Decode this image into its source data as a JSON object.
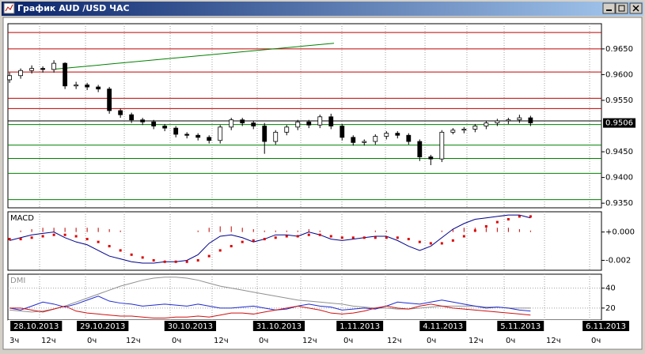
{
  "window_title": "График AUD /USD ЧАС",
  "chart_data": [
    {
      "type": "candlestick",
      "xlim": [
        -0.15,
        53.4
      ],
      "ylim": [
        0.9341,
        0.9699
      ],
      "yticks": [
        {
          "value": 0.965,
          "label": "0.9650"
        },
        {
          "value": 0.96,
          "label": "0.9600"
        },
        {
          "value": 0.955,
          "label": "0.9550"
        },
        {
          "value": 0.945,
          "label": "0.9450"
        },
        {
          "value": 0.94,
          "label": "0.9400"
        },
        {
          "value": 0.935,
          "label": "0.9350"
        }
      ],
      "current_price": {
        "value": 0.9506,
        "label": "0.9506"
      },
      "xticks": [
        {
          "value": 2.4,
          "label": "28.10.2013"
        },
        {
          "value": 8.4,
          "label": "29.10.2013"
        },
        {
          "value": 16.3,
          "label": "30.10.2013"
        },
        {
          "value": 24.3,
          "label": "31.10.2013"
        },
        {
          "value": 31.6,
          "label": "1.11.2013"
        },
        {
          "value": 39.1,
          "label": "4.11.2013"
        },
        {
          "value": 46.1,
          "label": "5.11.2013"
        },
        {
          "value": 53.8,
          "label": "6.11.2013"
        }
      ],
      "xticks_minor": [
        {
          "value": -0.15,
          "label": "3ч"
        },
        {
          "value": 2.71,
          "label": "12ч"
        },
        {
          "value": 6.85,
          "label": "0ч"
        },
        {
          "value": 10.35,
          "label": "12ч"
        },
        {
          "value": 14.49,
          "label": "0ч"
        },
        {
          "value": 18.27,
          "label": "12ч"
        },
        {
          "value": 22.34,
          "label": "0ч"
        },
        {
          "value": 26.27,
          "label": "12ч"
        },
        {
          "value": 29.98,
          "label": "0ч"
        },
        {
          "value": 33.91,
          "label": "12ч"
        },
        {
          "value": 37.48,
          "label": "0ч"
        },
        {
          "value": 41.26,
          "label": "12ч"
        },
        {
          "value": 44.62,
          "label": "0ч"
        },
        {
          "value": 48.26,
          "label": "12ч"
        },
        {
          "value": 52.33,
          "label": "0ч"
        }
      ],
      "levels": [
        {
          "value": 0.9682,
          "color": "#c00000"
        },
        {
          "value": 0.965,
          "color": "#c00000"
        },
        {
          "value": 0.9605,
          "color": "#c00000"
        },
        {
          "value": 0.9554,
          "color": "#c00000"
        },
        {
          "value": 0.9534,
          "color": "#c00000"
        },
        {
          "value": 0.951,
          "color": "#000000"
        },
        {
          "value": 0.9503,
          "color": "#008000"
        },
        {
          "value": 0.9463,
          "color": "#008000"
        },
        {
          "value": 0.9437,
          "color": "#008000"
        },
        {
          "value": 0.9408,
          "color": "#008000"
        },
        {
          "value": 0.9357,
          "color": "#008000"
        }
      ],
      "trendline": {
        "x": [
          3.78,
          29.27
        ],
        "values": [
          0.961,
          0.9661
        ],
        "color": "#008000"
      },
      "open": [
        0.959,
        0.9598,
        0.9608,
        0.9612,
        0.961,
        0.9622,
        0.9578,
        0.958,
        0.9576,
        0.9572,
        0.953,
        0.9522,
        0.9512,
        0.9508,
        0.95,
        0.9496,
        0.9484,
        0.9482,
        0.9478,
        0.9472,
        0.9498,
        0.9512,
        0.9506,
        0.95,
        0.947,
        0.9488,
        0.9498,
        0.9508,
        0.9502,
        0.9518,
        0.95,
        0.9478,
        0.9468,
        0.947,
        0.948,
        0.9486,
        0.9482,
        0.947,
        0.944,
        0.9436,
        0.9488,
        0.9492,
        0.9494,
        0.95,
        0.9506,
        0.951,
        0.9512,
        0.9516
      ],
      "high": [
        0.9604,
        0.9612,
        0.9618,
        0.9616,
        0.9628,
        0.9624,
        0.9586,
        0.9584,
        0.958,
        0.9576,
        0.9534,
        0.9526,
        0.9516,
        0.9512,
        0.9504,
        0.95,
        0.9488,
        0.9486,
        0.9482,
        0.9502,
        0.9516,
        0.9516,
        0.951,
        0.9506,
        0.9492,
        0.9502,
        0.9512,
        0.9512,
        0.9522,
        0.9524,
        0.9504,
        0.9482,
        0.9474,
        0.9484,
        0.949,
        0.949,
        0.9486,
        0.9474,
        0.9444,
        0.9492,
        0.9496,
        0.9498,
        0.9504,
        0.951,
        0.9514,
        0.9516,
        0.9522,
        0.952
      ],
      "low": [
        0.9584,
        0.9592,
        0.9602,
        0.9604,
        0.9604,
        0.9572,
        0.9572,
        0.957,
        0.9566,
        0.9524,
        0.9516,
        0.9506,
        0.9502,
        0.9494,
        0.949,
        0.9478,
        0.9476,
        0.9472,
        0.9466,
        0.9466,
        0.9492,
        0.95,
        0.9494,
        0.9446,
        0.9464,
        0.9482,
        0.9492,
        0.9496,
        0.9496,
        0.9494,
        0.9472,
        0.9462,
        0.9462,
        0.9464,
        0.9474,
        0.9476,
        0.9464,
        0.9432,
        0.9424,
        0.943,
        0.9484,
        0.9486,
        0.9488,
        0.9494,
        0.95,
        0.9504,
        0.9506,
        0.95
      ],
      "close": [
        0.9598,
        0.9608,
        0.9612,
        0.961,
        0.9622,
        0.9578,
        0.958,
        0.9576,
        0.9572,
        0.953,
        0.9522,
        0.9512,
        0.9508,
        0.95,
        0.9496,
        0.9484,
        0.9482,
        0.9478,
        0.9472,
        0.9498,
        0.9512,
        0.9506,
        0.95,
        0.947,
        0.9488,
        0.9498,
        0.9508,
        0.9502,
        0.9518,
        0.95,
        0.9478,
        0.9468,
        0.947,
        0.948,
        0.9486,
        0.9482,
        0.947,
        0.944,
        0.9436,
        0.9488,
        0.9492,
        0.9494,
        0.95,
        0.9506,
        0.951,
        0.9512,
        0.9516,
        0.9506
      ]
    },
    {
      "type": "macd",
      "title": "MACD",
      "ylim": [
        -0.0027,
        0.00143
      ],
      "yticks": [
        {
          "value": 0,
          "label": "+0.000"
        },
        {
          "value": -0.002,
          "label": "-0.002"
        }
      ],
      "histogram": {
        "color": "#c00000",
        "values": [
          0,
          0.0001,
          0.0002,
          0.0003,
          0.0003,
          0.0003,
          0.0003,
          0.0003,
          0.0003,
          0.0002,
          0.0001,
          0,
          0,
          0,
          0,
          0,
          0,
          0.0001,
          0.0003,
          0.0004,
          0.0004,
          0.0003,
          0.0002,
          0.0001,
          0.0001,
          0.0001,
          0.0001,
          0.0002,
          0.0001,
          0,
          0,
          0,
          0,
          0.0001,
          0.0001,
          0,
          0,
          0,
          0,
          0.0001,
          0.0002,
          0.0003,
          0.0003,
          0.0003,
          0.0003,
          0.0003,
          0.0002,
          0.0001
        ]
      },
      "series": [
        {
          "style": "line",
          "color": "#00008b",
          "values": [
            -0.0006,
            -0.0004,
            -0.0002,
            -0.0001,
            0.0,
            -0.0004,
            -0.0007,
            -0.0009,
            -0.0013,
            -0.0017,
            -0.0019,
            -0.0021,
            -0.0022,
            -0.0022,
            -0.0021,
            -0.0021,
            -0.002,
            -0.0016,
            -0.0008,
            -0.0003,
            -0.0002,
            -0.0004,
            -0.0007,
            -0.0005,
            -0.0002,
            -0.0002,
            -0.0003,
            0.0,
            -0.0002,
            -0.0005,
            -0.0006,
            -0.0005,
            -0.0004,
            -0.0003,
            -0.0003,
            -0.0006,
            -0.001,
            -0.0013,
            -0.001,
            -0.0004,
            0.0002,
            0.0006,
            0.0009,
            0.001,
            0.0011,
            0.0012,
            0.0012,
            0.001
          ]
        },
        {
          "style": "dots",
          "color": "#dd0000",
          "values": [
            -0.0005,
            -0.0005,
            -0.0004,
            -0.0003,
            -0.0002,
            -0.0002,
            -0.0003,
            -0.0005,
            -0.0007,
            -0.001,
            -0.0013,
            -0.0016,
            -0.0018,
            -0.002,
            -0.0021,
            -0.0021,
            -0.0021,
            -0.002,
            -0.0017,
            -0.0013,
            -0.001,
            -0.0007,
            -0.0006,
            -0.0005,
            -0.0004,
            -0.0003,
            -0.0003,
            -0.0002,
            -0.0002,
            -0.0003,
            -0.0004,
            -0.0004,
            -0.0004,
            -0.0004,
            -0.0004,
            -0.0004,
            -0.0005,
            -0.0007,
            -0.0008,
            -0.0008,
            -0.0006,
            -0.0003,
            0.0001,
            0.0004,
            0.0007,
            0.0009,
            0.0011,
            0.0011
          ]
        }
      ]
    },
    {
      "type": "dmi",
      "title": "DMI",
      "ylim": [
        8,
        54
      ],
      "yticks": [
        40,
        20
      ],
      "series": [
        {
          "style": "line",
          "color": "#909090",
          "values": [
            18,
            17,
            16,
            17,
            19,
            22,
            26,
            30,
            34,
            38,
            42,
            45,
            48,
            50,
            51,
            51,
            50,
            48,
            45,
            42,
            40,
            38,
            36,
            34,
            32,
            30,
            28,
            27,
            26,
            25,
            24,
            22,
            21,
            20,
            20,
            19,
            19,
            20,
            21,
            22,
            22,
            22,
            22,
            21,
            21,
            20,
            20,
            20
          ]
        },
        {
          "style": "line",
          "color": "#1e2ad0",
          "values": [
            20,
            18,
            22,
            26,
            24,
            21,
            24,
            28,
            32,
            27,
            25,
            24,
            22,
            23,
            24,
            23,
            22,
            24,
            22,
            20,
            20,
            21,
            22,
            20,
            18,
            19,
            22,
            24,
            22,
            21,
            18,
            19,
            20,
            19,
            22,
            26,
            25,
            24,
            26,
            28,
            26,
            24,
            22,
            20,
            21,
            20,
            18,
            17
          ]
        },
        {
          "style": "line",
          "color": "#d01010",
          "values": [
            20,
            20,
            18,
            16,
            19,
            22,
            17,
            15,
            14,
            13,
            12,
            12,
            11,
            10,
            10,
            11,
            11,
            12,
            11,
            13,
            15,
            15,
            14,
            16,
            18,
            20,
            22,
            20,
            18,
            15,
            14,
            15,
            17,
            20,
            22,
            20,
            19,
            22,
            24,
            22,
            20,
            19,
            18,
            17,
            16,
            15,
            14,
            13
          ]
        }
      ]
    }
  ]
}
